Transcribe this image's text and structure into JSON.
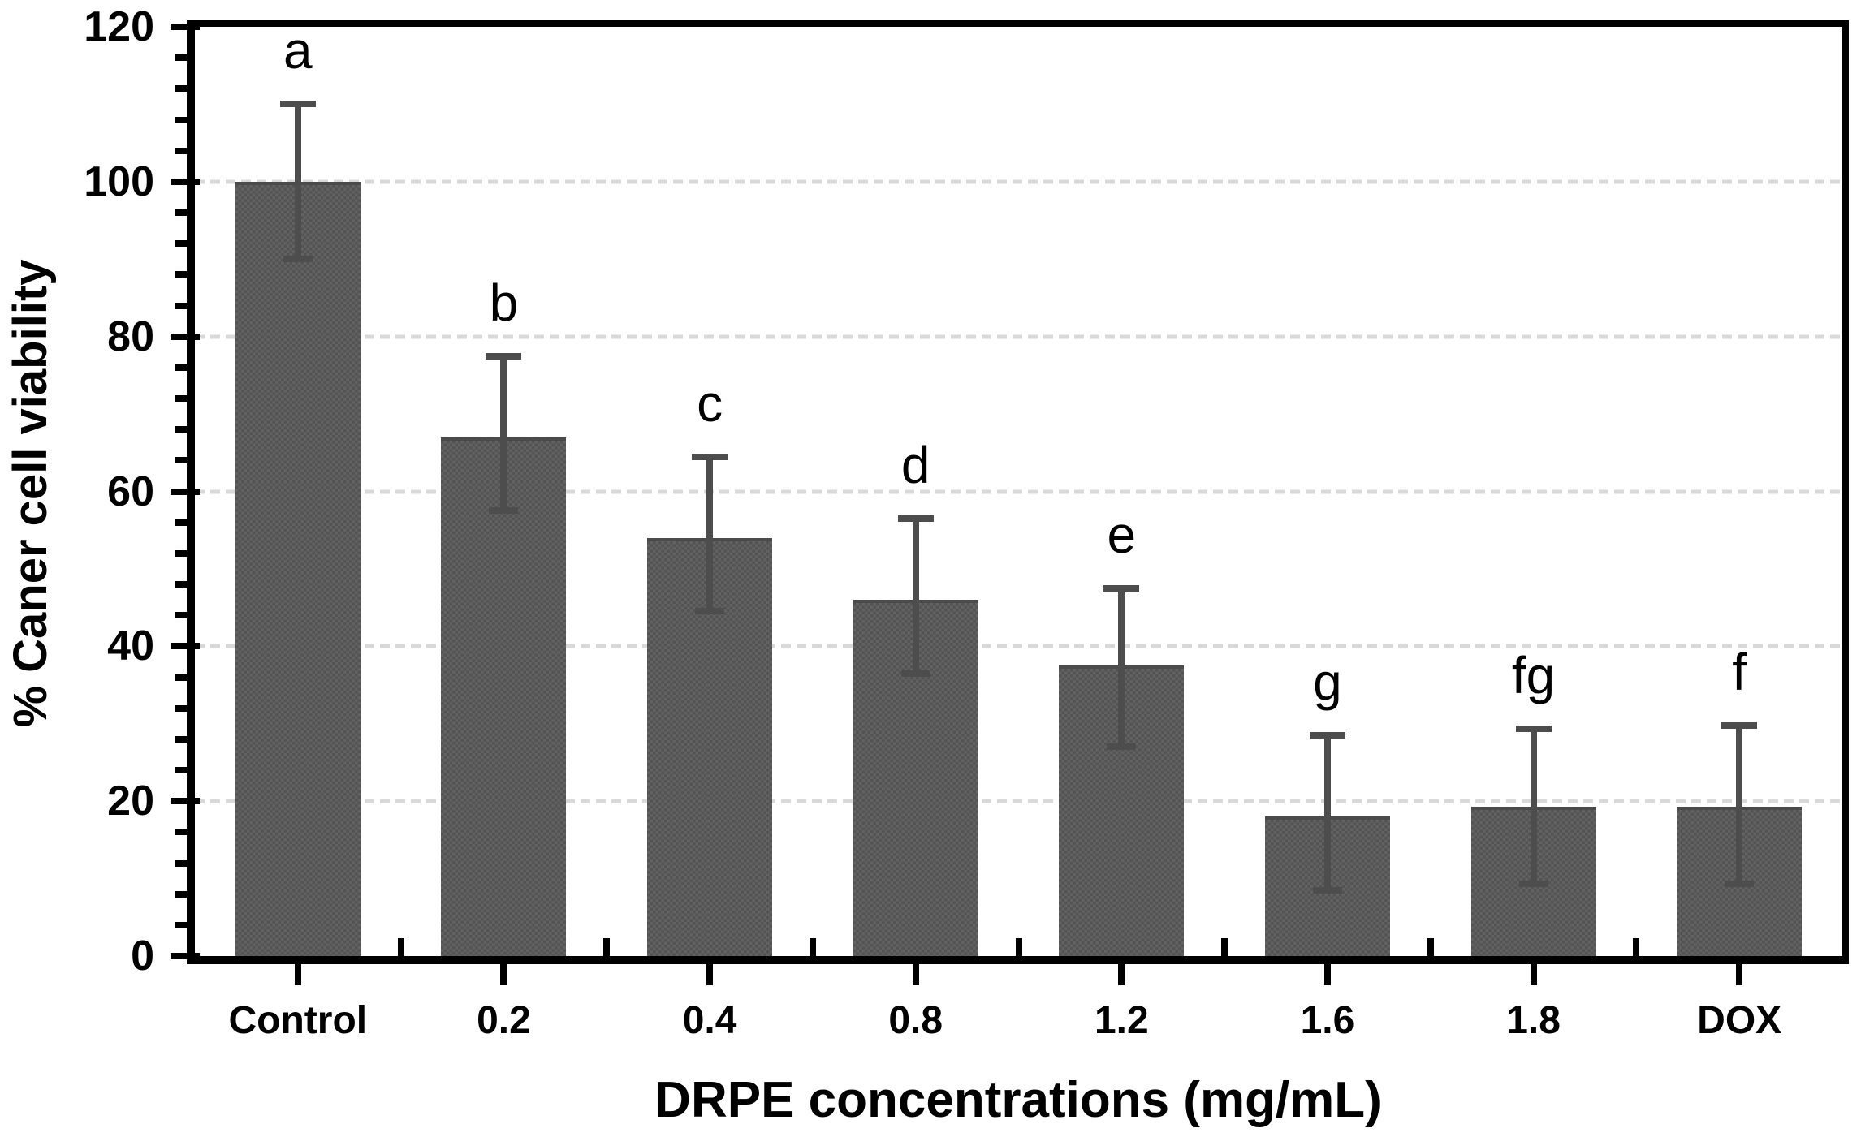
{
  "chart_data": {
    "type": "bar",
    "title": "",
    "xlabel": "DRPE concentrations (mg/mL)",
    "ylabel": "% Caner cell viability",
    "ylim": [
      0,
      120
    ],
    "ytick_major_interval": 20,
    "ytick_minor_interval": 4,
    "ytick_labels": [
      "0",
      "20",
      "40",
      "60",
      "80",
      "100",
      "120"
    ],
    "grid": "horizontal dashed gridlines at major ticks",
    "legend": "none",
    "categories": [
      "Control",
      "0.2",
      "0.4",
      "0.8",
      "1.2",
      "1.6",
      "1.8",
      "DOX"
    ],
    "values": [
      100,
      67,
      54,
      46,
      37.5,
      18,
      19.3,
      19.3
    ],
    "error_up": [
      10,
      10.5,
      10.5,
      10.5,
      10,
      10.5,
      10,
      10.5
    ],
    "error_down": [
      10,
      9.5,
      9.5,
      9.5,
      10.5,
      9.5,
      10,
      10
    ],
    "sig_labels": [
      "a",
      "b",
      "c",
      "d",
      "e",
      "g",
      "fg",
      "f"
    ],
    "colors": {
      "bar": "#5a5a5a",
      "bar_pattern_light": "#626262",
      "bar_pattern_dark": "#535353",
      "bar_outline": "#4b4b4b",
      "error_bar": "#4d4d4d",
      "grid": "#d9d9d9",
      "axis": "#000000",
      "background": "#ffffff",
      "text": "#000000"
    }
  }
}
